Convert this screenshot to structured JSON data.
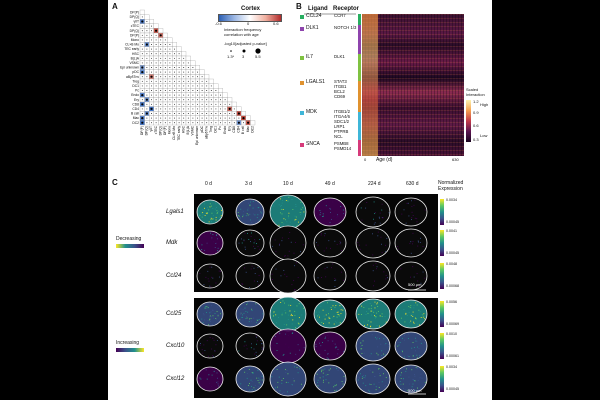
{
  "panels": {
    "a": "A",
    "b": "B",
    "c": "C"
  },
  "panel_a": {
    "legend_title": "Cortex",
    "scale_ticks": [
      "-0.6",
      "0",
      "0.6"
    ],
    "scale_caption": [
      "Interaction frequency",
      "correlation with age"
    ],
    "size_title": "-log10[adjusted p-value]",
    "size_ticks": [
      "1.3*",
      "3",
      "5.5"
    ],
    "rows": [
      "DP(P)",
      "DP(Q)",
      "γδT",
      "cTEC",
      "DP(Q)",
      "DP(P)",
      "Mono",
      "CL×B Mo",
      "TEC early",
      "HSC",
      "B(L)A",
      "VSMC",
      "Epi unknown",
      "pDC",
      "aBγδTnv",
      "Treg",
      "DC1",
      "Pc",
      "Endo",
      "Ery",
      "CD8",
      "CD4",
      "B cell",
      "Mac",
      "DC2"
    ],
    "colors": {
      "pos": "#c0392b",
      "neg": "#3a6fc4"
    }
  },
  "panel_b": {
    "col_ligand": "Ligand",
    "col_receptor": "Receptor",
    "groups": [
      {
        "ligand": "CCL24",
        "receptors": [
          "CCR7"
        ],
        "color": "#27ae60"
      },
      {
        "ligand": "DLK1",
        "receptors": [
          "NOTCH 1/3"
        ],
        "color": "#8e44ad"
      },
      {
        "ligand": "IL7",
        "receptors": [
          "DLK1"
        ],
        "color": "#7fc241"
      },
      {
        "ligand": "LGALS1",
        "receptors": [
          "STAT3",
          "ITGB1",
          "BCL2",
          "CD69"
        ],
        "color": "#e0922f"
      },
      {
        "ligand": "MDK",
        "receptors": [
          "ITGB1/2",
          "ITGA4/6",
          "SDC1/2",
          "LRP1",
          "PTPRB",
          "NCL"
        ],
        "color": "#3fb6d8"
      },
      {
        "ligand": "SNCA",
        "receptors": [
          "PSMB8",
          "PSMD14"
        ],
        "color": "#d63a7a"
      }
    ],
    "xlabel": "Age (d)",
    "x_ticks": [
      "0",
      "630"
    ],
    "colorbar_title": [
      "Scaled",
      "Interaction"
    ],
    "colorbar_ticks": [
      "1.2",
      "0.9",
      "0.6",
      "0.3"
    ],
    "colorbar_high": "High",
    "colorbar_low": "Low"
  },
  "panel_c": {
    "ages": [
      "0 d",
      "3 d",
      "10 d",
      "49 d",
      "224 d",
      "630 d"
    ],
    "expr_title": [
      "Normalized",
      "Expression"
    ],
    "decreasing": {
      "label": "Decreasing",
      "genes": [
        "Lgals1",
        "Mdk",
        "Ccl24"
      ],
      "max": [
        "0.0034",
        "0.0041",
        "0.0048"
      ],
      "min": [
        "0.00045",
        "0.00045",
        "0.00068"
      ]
    },
    "increasing": {
      "label": "Increasing",
      "genes": [
        "Ccl25",
        "Cxcl10",
        "Cxcl12"
      ],
      "max": [
        "0.0056",
        "0.0010",
        "0.0034"
      ],
      "min": [
        "0.00069",
        "0.00061",
        "0.00045"
      ]
    },
    "scale_bar": "500 μm"
  }
}
